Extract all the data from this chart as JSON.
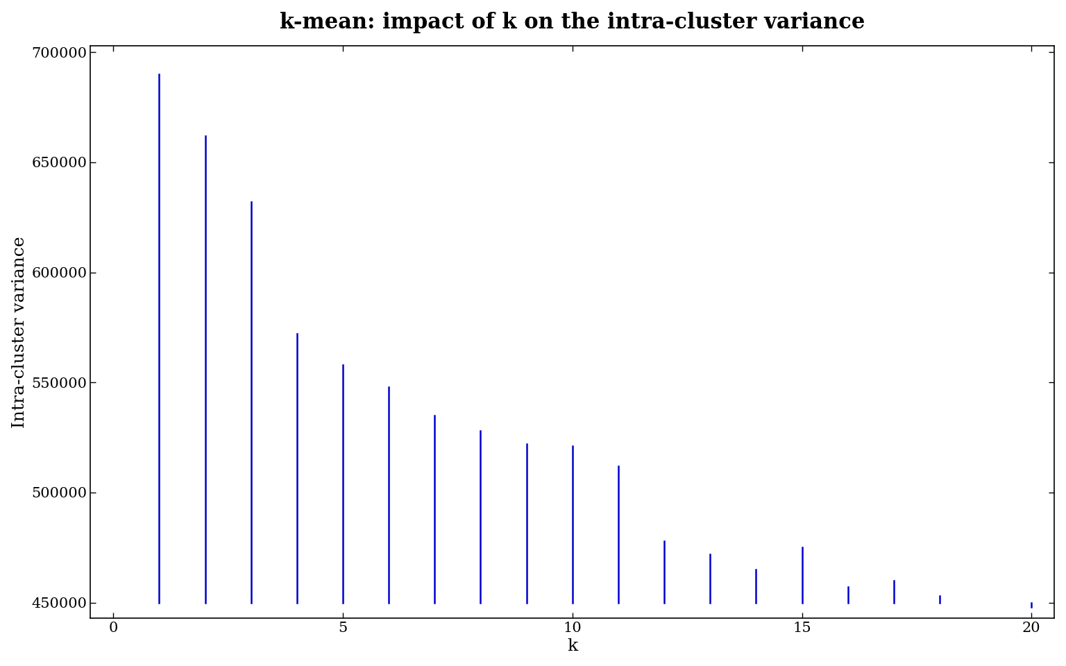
{
  "title": "k-mean: impact of k on the intra-cluster variance",
  "xlabel": "k",
  "ylabel": "Intra-cluster variance",
  "k_values": [
    1,
    2,
    3,
    4,
    5,
    6,
    7,
    8,
    9,
    10,
    11,
    12,
    13,
    14,
    15,
    16,
    17,
    18,
    19,
    20
  ],
  "variances": [
    690000,
    662000,
    632000,
    572000,
    558000,
    548000,
    535000,
    528000,
    522000,
    521000,
    512000,
    478000,
    472000,
    465000,
    475000,
    457000,
    460000,
    453000,
    450000,
    448000
  ],
  "line_color": "#0000cc",
  "background_color": "#ffffff",
  "xlim": [
    -0.5,
    20.5
  ],
  "ylim": [
    443000,
    703000
  ],
  "xticks": [
    0,
    5,
    10,
    15,
    20
  ],
  "yticks": [
    450000,
    500000,
    550000,
    600000,
    650000,
    700000
  ],
  "ytick_labels": [
    "450000",
    "500000",
    "550000",
    "600000",
    "650000",
    "700000"
  ],
  "title_fontsize": 22,
  "axis_label_fontsize": 18,
  "tick_fontsize": 15,
  "linewidth": 1.8
}
